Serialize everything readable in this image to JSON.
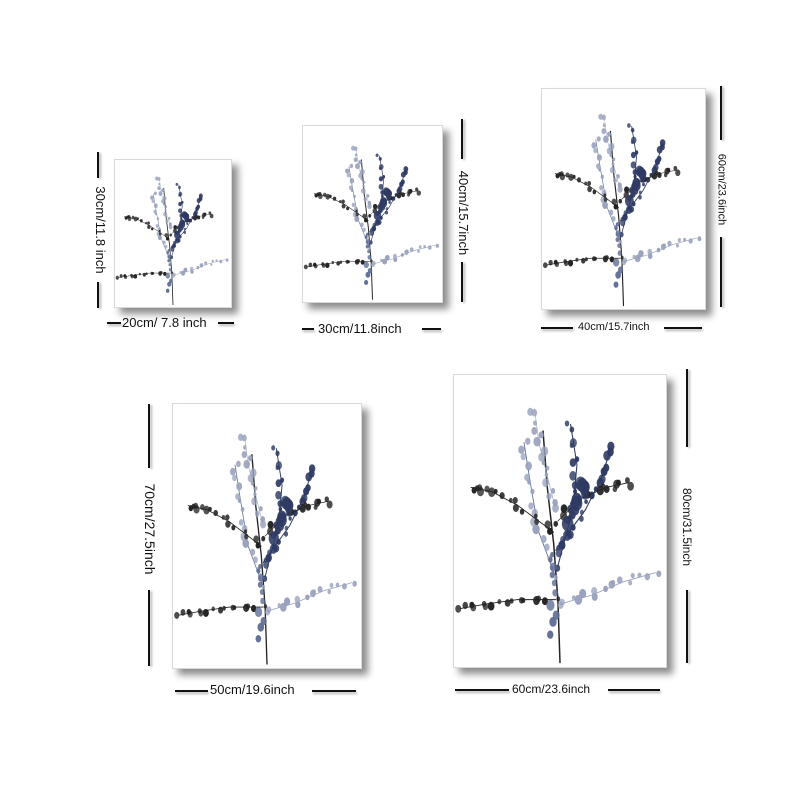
{
  "sizes": [
    {
      "width": "20cm/ 7.8 inch",
      "height": "30cm/11.8 inch"
    },
    {
      "width": "30cm/11.8inch",
      "height": "40cm/15.7inch"
    },
    {
      "width": "40cm/15.7inch",
      "height": "60cm/23.6inch"
    },
    {
      "width": "50cm/19.6inch",
      "height": "70cm/27.5inch"
    },
    {
      "width": "60cm/23.6inch",
      "height": "80cm/31.5inch"
    }
  ],
  "colors": {
    "navy": "#2e3a63",
    "mid": "#5d6a92",
    "light": "#9aa2bd",
    "stem": "#222222"
  }
}
